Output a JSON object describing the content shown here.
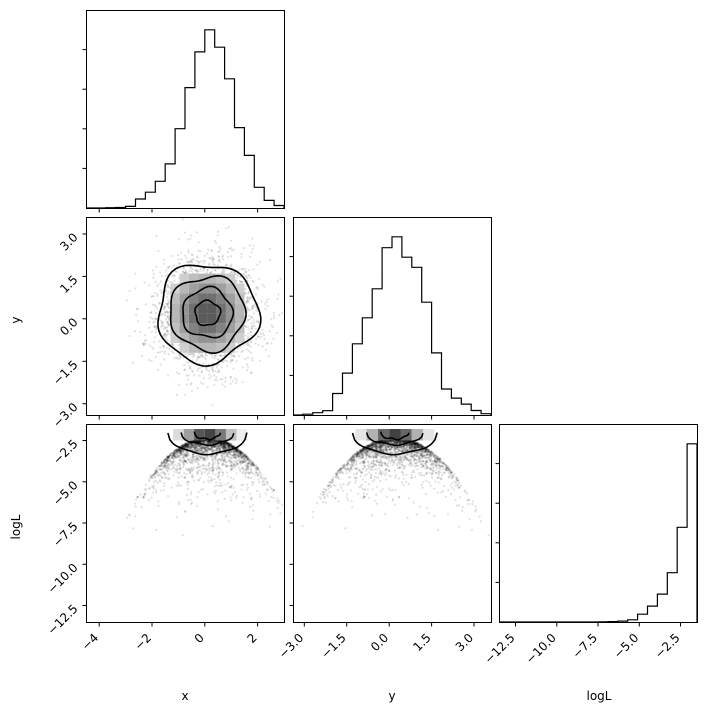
{
  "chart_data": {
    "type": "corner",
    "parameters": [
      "x",
      "y",
      "logL"
    ],
    "axis_labels": {
      "x": "x",
      "y": "y",
      "logL": "logL"
    },
    "axes": {
      "x": {
        "lim": [
          -4.5,
          3.0
        ],
        "ticks": [
          -4,
          -2,
          0,
          2
        ],
        "tick_labels": [
          "−4",
          "−2",
          "0",
          "2"
        ]
      },
      "y": {
        "lim": [
          -3.4,
          3.6
        ],
        "ticks": [
          -3.0,
          -1.5,
          0.0,
          1.5,
          3.0
        ],
        "tick_labels": [
          "−3.0",
          "−1.5",
          "0.0",
          "1.5",
          "3.0"
        ]
      },
      "logL": {
        "lim": [
          -13.5,
          -1.5
        ],
        "ticks": [
          -12.5,
          -10.0,
          -7.5,
          -5.0,
          -2.5
        ],
        "tick_labels": [
          "−12.5",
          "−10.0",
          "−7.5",
          "−5.0",
          "−2.5"
        ]
      }
    },
    "histograms": {
      "x": {
        "edges": [
          -4.5,
          -4.125,
          -3.75,
          -3.375,
          -3.0,
          -2.625,
          -2.25,
          -1.875,
          -1.5,
          -1.125,
          -0.75,
          -0.375,
          0.0,
          0.375,
          0.75,
          1.125,
          1.5,
          1.875,
          2.25,
          2.625,
          3.0
        ],
        "counts": [
          0,
          0,
          1,
          2,
          6,
          33,
          58,
          98,
          162,
          291,
          442,
          573,
          654,
          590,
          474,
          295,
          193,
          76,
          28,
          9
        ]
      },
      "y": {
        "edges": [
          -3.4,
          -3.05,
          -2.7,
          -2.35,
          -2.0,
          -1.65,
          -1.3,
          -0.95,
          -0.6,
          -0.25,
          0.1,
          0.45,
          0.8,
          1.15,
          1.5,
          1.85,
          2.2,
          2.55,
          2.9,
          3.25,
          3.6
        ],
        "counts": [
          0,
          3,
          9,
          17,
          85,
          166,
          282,
          385,
          500,
          663,
          706,
          625,
          585,
          447,
          246,
          103,
          67,
          43,
          18,
          5
        ]
      },
      "logL": {
        "edges": [
          -13.5,
          -12.9,
          -12.3,
          -11.7,
          -11.1,
          -10.5,
          -9.9,
          -9.3,
          -8.7,
          -8.1,
          -7.5,
          -6.9,
          -6.3,
          -5.7,
          -5.1,
          -4.5,
          -3.9,
          -3.3,
          -2.7,
          -2.1,
          -1.5
        ],
        "counts": [
          0,
          0,
          0,
          0,
          0,
          0,
          0,
          0,
          0,
          0,
          2,
          5,
          10,
          26,
          91,
          186,
          327,
          578,
          1111,
          2090
        ]
      }
    },
    "density_2d": {
      "y_vs_x": {
        "center": [
          0.1,
          0.2
        ],
        "sigma": [
          0.95,
          0.95
        ],
        "contour_levels": [
          0.5,
          1.0,
          1.5,
          2.0
        ]
      },
      "logL_vs_x": {
        "mode": "logL = -2.3 - 0.5*(x^2 + y^2)",
        "contour_levels": [
          0.5,
          1.0,
          1.5
        ]
      },
      "logL_vs_y": {
        "mode": "logL = -2.3 - 0.5*(x^2 + y^2)",
        "contour_levels": [
          0.5,
          1.0,
          1.5
        ]
      }
    },
    "grid": false
  }
}
